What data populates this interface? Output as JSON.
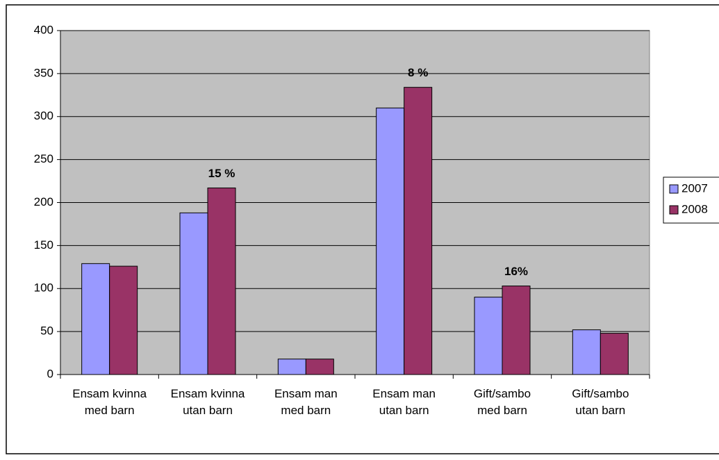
{
  "chart_data": {
    "type": "bar",
    "categories": [
      "Ensam kvinna med barn",
      "Ensam kvinna utan barn",
      "Ensam man med barn",
      "Ensam man utan barn",
      "Gift/sambo med barn",
      "Gift/sambo utan barn"
    ],
    "series": [
      {
        "name": "2007",
        "color": "#9999ff",
        "values": [
          129,
          188,
          18,
          310,
          90,
          52
        ]
      },
      {
        "name": "2008",
        "color": "#993366",
        "values": [
          126,
          217,
          18,
          334,
          103,
          48
        ]
      }
    ],
    "annotations": [
      {
        "label": "15 %",
        "category": 1,
        "series": 1
      },
      {
        "label": "8 %",
        "category": 3,
        "series": 1
      },
      {
        "label": "16%",
        "category": 4,
        "series": 1
      }
    ],
    "ylim": [
      0,
      400
    ],
    "yticks": [
      0,
      50,
      100,
      150,
      200,
      250,
      300,
      350,
      400
    ],
    "grid": true,
    "legend": "right",
    "plot_background": "#c0c0c0"
  }
}
